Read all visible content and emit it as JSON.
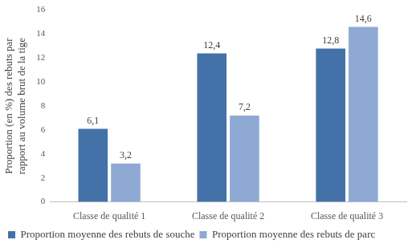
{
  "chart_data": {
    "type": "bar",
    "y_label": [
      "Proportion (en %) des rebuts par",
      "rapport au volume brut de la tige"
    ],
    "categories": [
      "Classe de qualité 1",
      "Classe de qualité 2",
      "Classe de qualité 3"
    ],
    "series": [
      {
        "name": "Proportion moyenne des rebuts de souche",
        "color": "#4472a8",
        "values": [
          6.1,
          12.4,
          12.8
        ],
        "value_labels": [
          "6,1",
          "12,4",
          "12,8"
        ]
      },
      {
        "name": "Proportion moyenne des rebuts de parc",
        "color": "#8eaad4",
        "values": [
          3.2,
          7.2,
          14.6
        ],
        "value_labels": [
          "3,2",
          "7,2",
          "14,6"
        ]
      }
    ],
    "ylim": [
      0,
      16
    ],
    "yticks": [
      0,
      2,
      4,
      6,
      8,
      10,
      12,
      14,
      16
    ],
    "grid": false,
    "legend": "bottom",
    "data_labels": true
  }
}
